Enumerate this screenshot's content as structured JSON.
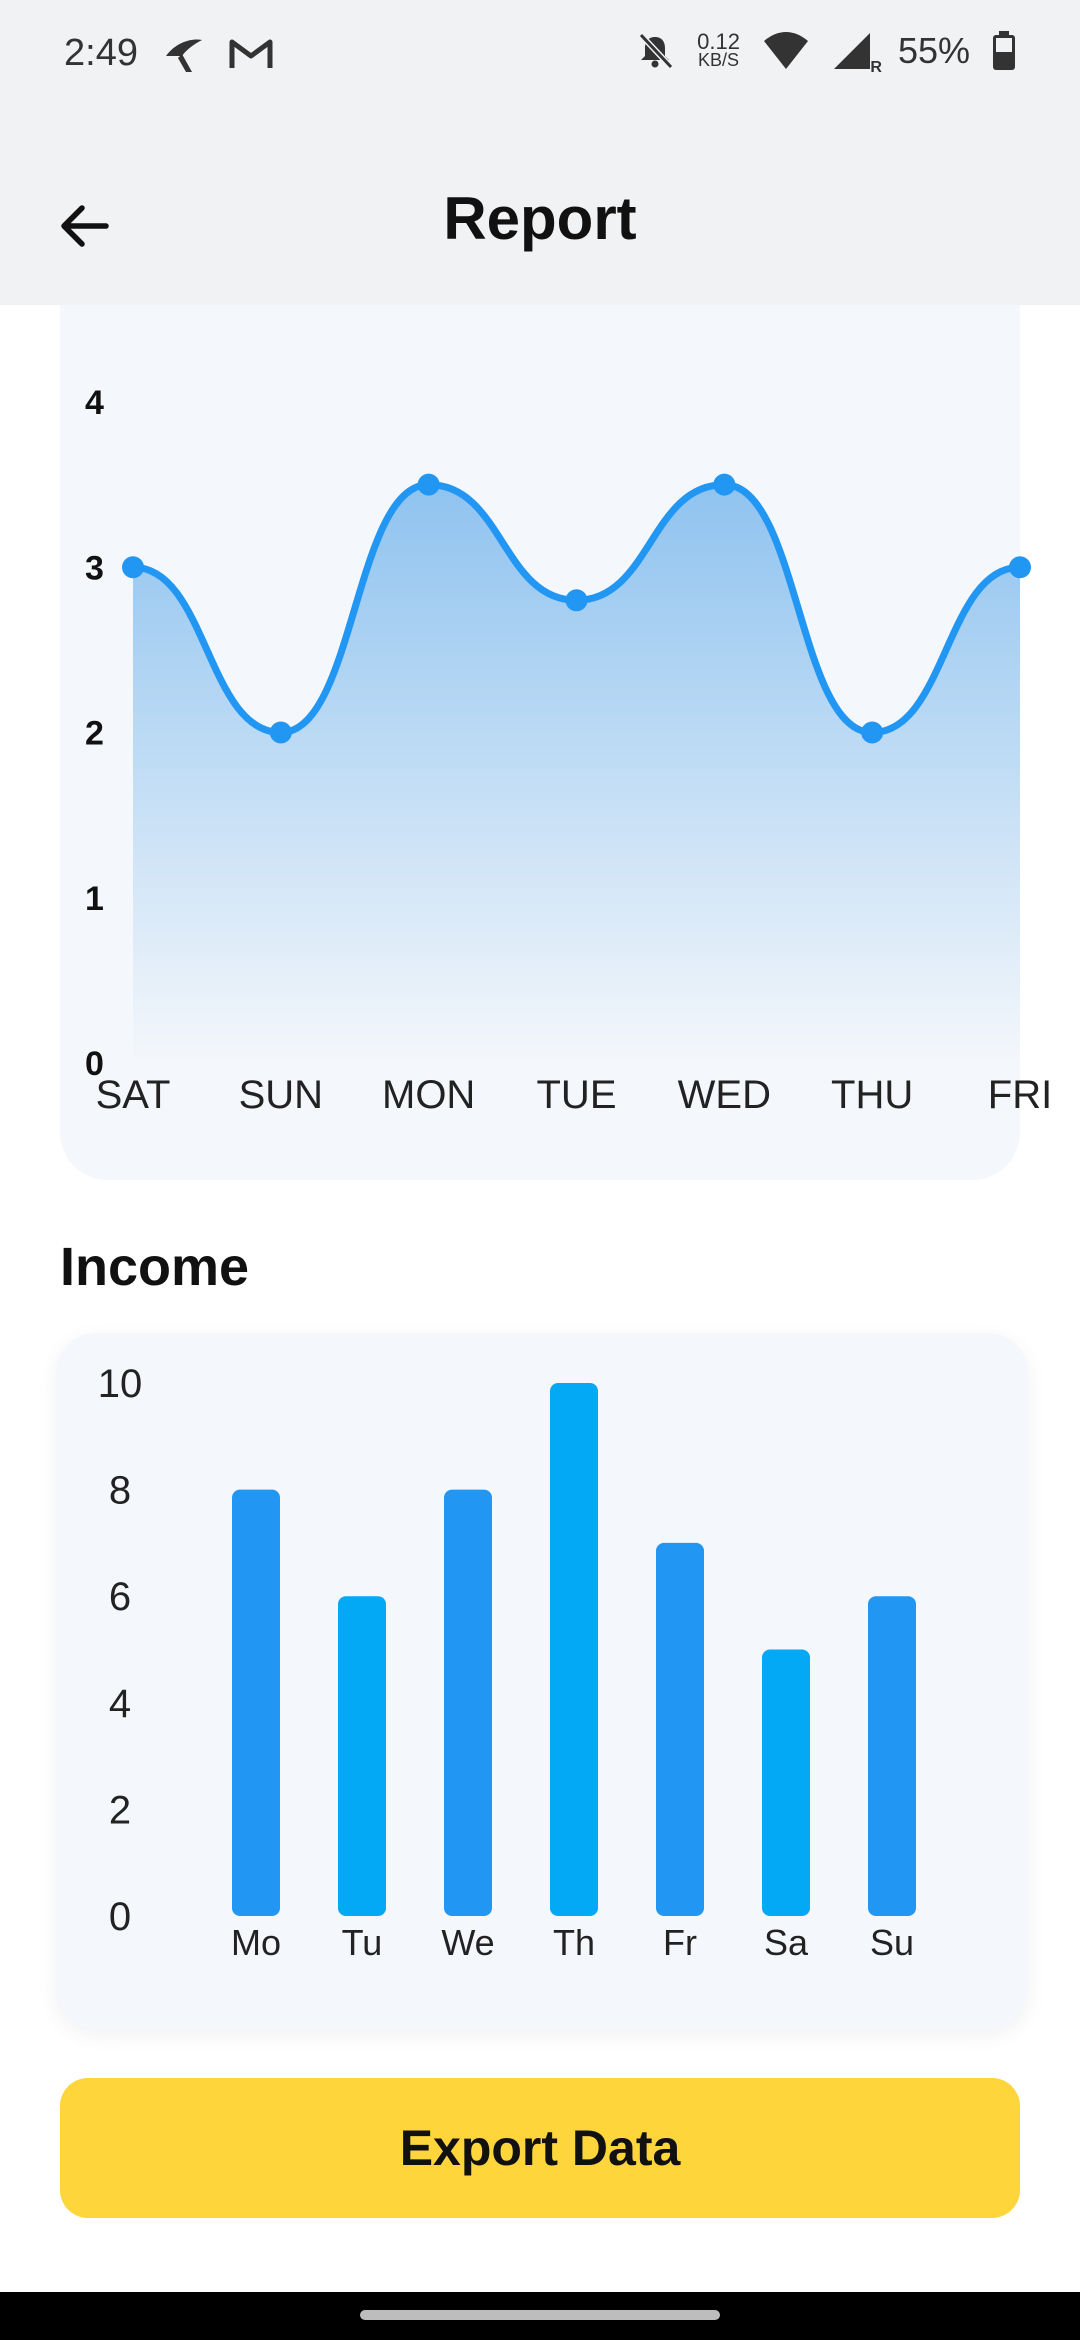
{
  "status_bar": {
    "time": "2:49",
    "net_speed_value": "0.12",
    "net_speed_unit": "KB/S",
    "network_badge": "R",
    "battery": "55%",
    "icons": [
      "carrier-icon",
      "gmail-icon",
      "mute-bell-icon",
      "wifi-icon",
      "signal-icon",
      "battery-icon"
    ]
  },
  "app_bar": {
    "title": "Report",
    "back_icon": "arrow-left-icon"
  },
  "colors": {
    "line": "#2196f3",
    "area_top": "#8fc3ef",
    "bar_primary": "#2196f3",
    "bar_alt": "#03a9f4",
    "button": "#fed53b"
  },
  "line_chart": {
    "chart_data": {
      "type": "area",
      "categories": [
        "SAT",
        "SUN",
        "MON",
        "TUE",
        "WED",
        "THU",
        "FRI"
      ],
      "values": [
        3,
        2,
        3.5,
        2.8,
        3.5,
        2,
        3
      ],
      "ylim": [
        0,
        4
      ],
      "yticks": [
        "0",
        "1",
        "2",
        "3",
        "4"
      ],
      "smooth": true
    }
  },
  "income": {
    "title": "Income",
    "chart_data": {
      "type": "bar",
      "categories": [
        "Mo",
        "Tu",
        "We",
        "Th",
        "Fr",
        "Sa",
        "Su"
      ],
      "values": [
        8,
        6,
        8,
        10,
        7,
        5,
        6
      ],
      "ylim": [
        0,
        10
      ],
      "yticks": [
        "0",
        "2",
        "4",
        "6",
        "8",
        "10"
      ]
    }
  },
  "export_button": {
    "label": "Export Data"
  }
}
